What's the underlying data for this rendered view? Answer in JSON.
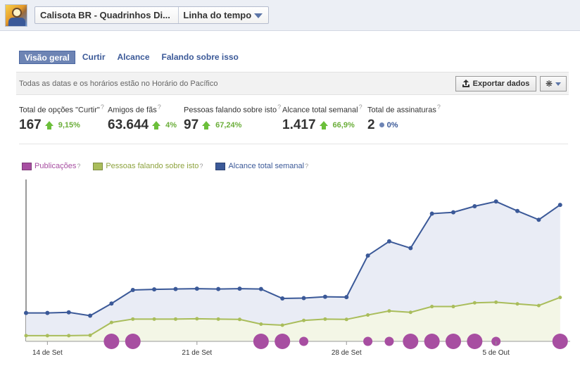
{
  "header": {
    "page_name": "Calisota BR - Quadrinhos Di...",
    "view_selector": "Linha do tempo"
  },
  "tabs": [
    {
      "label": "Visão geral",
      "active": true
    },
    {
      "label": "Curtir",
      "active": false
    },
    {
      "label": "Alcance",
      "active": false
    },
    {
      "label": "Falando sobre isso",
      "active": false
    }
  ],
  "infobar": {
    "timezone_note": "Todas as datas e os horários estão no Horário do Pacífico",
    "export_label": "Exportar dados",
    "export_icon": "export-icon",
    "settings_icon": "gear-icon"
  },
  "stats": [
    {
      "label": "Total de opções \"Curtir\"",
      "value": "167",
      "change": "9,15%",
      "trend": "up"
    },
    {
      "label": "Amigos de fãs",
      "value": "63.644",
      "change": "4%",
      "trend": "up"
    },
    {
      "label": "Pessoas falando sobre isto",
      "value": "97",
      "change": "67,24%",
      "trend": "up"
    },
    {
      "label": "Alcance total semanal",
      "value": "1.417",
      "change": "66,9%",
      "trend": "up"
    },
    {
      "label": "Total de assinaturas",
      "value": "2",
      "change": "0%",
      "trend": "neutral"
    }
  ],
  "colors": {
    "posts": "#a74ea1",
    "talking": "#a9bd5b",
    "reach": "#3b5998",
    "reach_fill": "#e9ecf5",
    "talking_fill": "#f3f6e6",
    "up": "#6bbf3a"
  },
  "chart_data": {
    "type": "line",
    "x_tick_labels": [
      "14 de Set",
      "21 de Set",
      "28 de Set",
      "5 de Out"
    ],
    "legend": [
      "Publicações",
      "Pessoas falando sobre isto",
      "Alcance total semanal"
    ],
    "series": [
      {
        "name": "Alcance total semanal",
        "values": [
          420,
          420,
          430,
          380,
          560,
          760,
          770,
          775,
          780,
          775,
          780,
          775,
          635,
          640,
          660,
          655,
          1270,
          1480,
          1380,
          1890,
          1910,
          2000,
          2070,
          1930,
          1800,
          2020
        ]
      },
      {
        "name": "Pessoas falando sobre isto",
        "values": [
          85,
          85,
          85,
          90,
          280,
          330,
          330,
          330,
          335,
          330,
          325,
          255,
          240,
          310,
          330,
          325,
          390,
          450,
          430,
          515,
          515,
          570,
          580,
          555,
          530,
          650
        ]
      },
      {
        "name": "Publicações",
        "values": [
          0,
          0,
          0,
          0,
          2,
          2,
          0,
          0,
          0,
          0,
          0,
          2,
          2,
          1,
          0,
          0,
          1,
          1,
          2,
          2,
          2,
          2,
          1,
          0,
          0,
          2
        ]
      }
    ],
    "ylim": [
      0,
      2500
    ]
  }
}
